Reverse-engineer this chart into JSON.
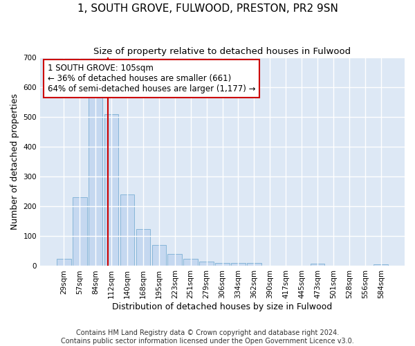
{
  "title": "1, SOUTH GROVE, FULWOOD, PRESTON, PR2 9SN",
  "subtitle": "Size of property relative to detached houses in Fulwood",
  "xlabel": "Distribution of detached houses by size in Fulwood",
  "ylabel": "Number of detached properties",
  "bar_color": "#c5d8f0",
  "bar_edge_color": "#7aafd4",
  "background_color": "#dde8f5",
  "grid_color": "#ffffff",
  "categories": [
    "29sqm",
    "57sqm",
    "84sqm",
    "112sqm",
    "140sqm",
    "168sqm",
    "195sqm",
    "223sqm",
    "251sqm",
    "279sqm",
    "306sqm",
    "334sqm",
    "362sqm",
    "390sqm",
    "417sqm",
    "445sqm",
    "473sqm",
    "501sqm",
    "528sqm",
    "556sqm",
    "584sqm"
  ],
  "values": [
    25,
    230,
    570,
    510,
    240,
    125,
    70,
    40,
    25,
    15,
    10,
    10,
    10,
    0,
    0,
    0,
    8,
    0,
    0,
    0,
    5
  ],
  "ylim": [
    0,
    700
  ],
  "yticks": [
    0,
    100,
    200,
    300,
    400,
    500,
    600,
    700
  ],
  "property_line_x": 2.77,
  "annotation_text": "1 SOUTH GROVE: 105sqm\n← 36% of detached houses are smaller (661)\n64% of semi-detached houses are larger (1,177) →",
  "annotation_box_color": "#ffffff",
  "annotation_border_color": "#cc0000",
  "vline_color": "#cc0000",
  "footer_text": "Contains HM Land Registry data © Crown copyright and database right 2024.\nContains public sector information licensed under the Open Government Licence v3.0.",
  "title_fontsize": 11,
  "subtitle_fontsize": 9.5,
  "xlabel_fontsize": 9,
  "ylabel_fontsize": 9,
  "annotation_fontsize": 8.5,
  "footer_fontsize": 7,
  "tick_fontsize": 7.5
}
